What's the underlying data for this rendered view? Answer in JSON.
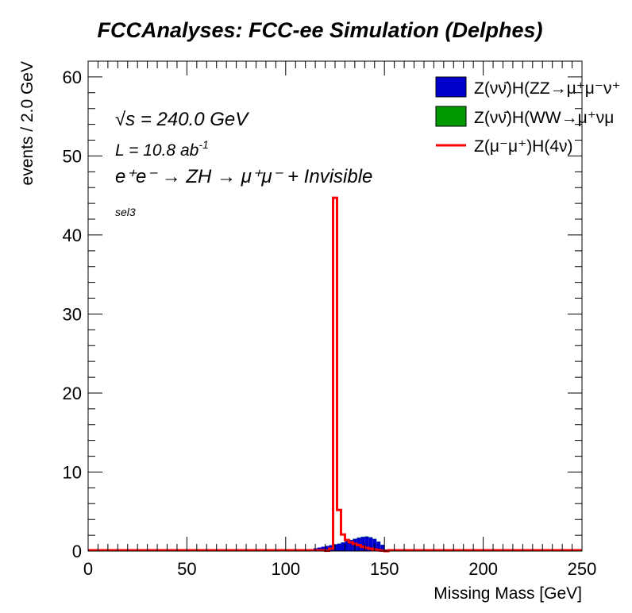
{
  "chart_data": {
    "type": "bar",
    "title": "FCCAnalyses: FCC-ee Simulation (Delphes)",
    "xlabel": "Missing Mass [GeV]",
    "ylabel": "events / 2.0 GeV",
    "xlim": [
      0,
      250
    ],
    "ylim": [
      0,
      62
    ],
    "bin_width": 2,
    "x_ticks": [
      "0",
      "50",
      "100",
      "150",
      "200",
      "250"
    ],
    "y_ticks": [
      "0",
      "10",
      "20",
      "30",
      "40",
      "50",
      "60"
    ],
    "annotations": {
      "sqrt_s": "√s = 240.0 GeV",
      "lumi_prefix": "L = 10.8 ab",
      "lumi_exp": "-1",
      "process": "e⁺e⁻ → ZH → μ⁺μ⁻ + Invisible",
      "selection": "sel3"
    },
    "legend": {
      "placement": "top-right",
      "entries": [
        {
          "label": "Z(νν̄)H(ZZ→μ⁺μ⁻ν⁺",
          "style": "fill",
          "color": "#0000cc"
        },
        {
          "label": "Z(νν̄)H(WW→μ⁺νμ",
          "style": "fill",
          "color": "#009900"
        },
        {
          "label": "Z(μ⁻μ⁺)H(4ν)",
          "style": "line",
          "color": "#ff0000"
        }
      ]
    },
    "series": [
      {
        "name": "Z(νν̄)H(ZZ→μ⁺μ⁻ν⁺",
        "style": "stacked-fill",
        "color": "#0000cc",
        "x": [
          106,
          108,
          110,
          112,
          114,
          116,
          118,
          120,
          122,
          124,
          126,
          128,
          130,
          132,
          134,
          136,
          138,
          140,
          142,
          144,
          146,
          148,
          150,
          152
        ],
        "values": [
          0.05,
          0.1,
          0.15,
          0.25,
          0.35,
          0.45,
          0.55,
          0.65,
          0.75,
          0.85,
          0.95,
          1.1,
          1.25,
          1.4,
          1.55,
          1.7,
          1.8,
          1.85,
          1.75,
          1.55,
          1.2,
          0.8,
          0.2,
          0.02
        ]
      },
      {
        "name": "Z(νν̄)H(WW→μ⁺νμ",
        "style": "stacked-fill",
        "color": "#009900",
        "x": [
          126,
          128,
          130,
          132,
          134,
          136,
          138,
          140,
          142,
          144,
          146,
          148
        ],
        "values": [
          0.01,
          0.01,
          0.02,
          0.02,
          0.02,
          0.02,
          0.02,
          0.02,
          0.02,
          0.01,
          0.01,
          0.01
        ]
      },
      {
        "name": "Z(μ⁻μ⁺)H(4ν)",
        "style": "step-line",
        "color": "#ff0000",
        "x": [
          120,
          122,
          124,
          126,
          128,
          130,
          132,
          134,
          136,
          138,
          140,
          142,
          144,
          146,
          148,
          150
        ],
        "values": [
          0.05,
          0.3,
          44.7,
          5.2,
          2.1,
          1.4,
          1.1,
          0.9,
          0.75,
          0.55,
          0.4,
          0.3,
          0.2,
          0.12,
          0.05,
          0
        ]
      }
    ]
  }
}
